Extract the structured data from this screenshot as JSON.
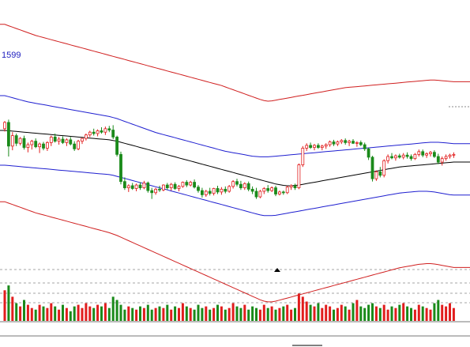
{
  "chart_data": {
    "type": "candlestick",
    "price_label": "1599",
    "colors": {
      "up": "#e11d1d",
      "down": "#1a8a1a",
      "ma": "#000000",
      "inner_band": "#1f1fd0",
      "outer_band": "#d01f1f",
      "grid": "#888888",
      "price_label": "#2020c0"
    },
    "candles": [
      [
        1580,
        1602,
        1572,
        1598
      ],
      [
        1598,
        1606,
        1500,
        1530
      ],
      [
        1530,
        1570,
        1518,
        1560
      ],
      [
        1560,
        1566,
        1530,
        1538
      ],
      [
        1538,
        1556,
        1532,
        1552
      ],
      [
        1552,
        1560,
        1520,
        1526
      ],
      [
        1526,
        1540,
        1512,
        1534
      ],
      [
        1534,
        1548,
        1520,
        1544
      ],
      [
        1544,
        1552,
        1524,
        1528
      ],
      [
        1528,
        1540,
        1510,
        1536
      ],
      [
        1536,
        1542,
        1518,
        1524
      ],
      [
        1524,
        1544,
        1516,
        1540
      ],
      [
        1540,
        1560,
        1530,
        1556
      ],
      [
        1556,
        1566,
        1540,
        1544
      ],
      [
        1544,
        1556,
        1534,
        1550
      ],
      [
        1550,
        1558,
        1536,
        1540
      ],
      [
        1540,
        1552,
        1530,
        1548
      ],
      [
        1548,
        1556,
        1532,
        1536
      ],
      [
        1536,
        1544,
        1516,
        1522
      ],
      [
        1522,
        1548,
        1518,
        1544
      ],
      [
        1544,
        1554,
        1536,
        1552
      ],
      [
        1552,
        1566,
        1546,
        1562
      ],
      [
        1562,
        1574,
        1556,
        1570
      ],
      [
        1570,
        1580,
        1560,
        1566
      ],
      [
        1566,
        1578,
        1558,
        1574
      ],
      [
        1574,
        1584,
        1566,
        1570
      ],
      [
        1570,
        1586,
        1562,
        1580
      ],
      [
        1580,
        1588,
        1570,
        1576
      ],
      [
        1576,
        1590,
        1550,
        1556
      ],
      [
        1556,
        1560,
        1500,
        1506
      ],
      [
        1506,
        1514,
        1420,
        1428
      ],
      [
        1428,
        1440,
        1404,
        1410
      ],
      [
        1410,
        1420,
        1398,
        1416
      ],
      [
        1416,
        1424,
        1404,
        1408
      ],
      [
        1408,
        1422,
        1400,
        1418
      ],
      [
        1418,
        1426,
        1404,
        1410
      ],
      [
        1410,
        1430,
        1406,
        1424
      ],
      [
        1424,
        1428,
        1396,
        1402
      ],
      [
        1402,
        1410,
        1378,
        1396
      ],
      [
        1396,
        1410,
        1390,
        1406
      ],
      [
        1406,
        1416,
        1398,
        1404
      ],
      [
        1404,
        1420,
        1400,
        1418
      ],
      [
        1418,
        1424,
        1404,
        1410
      ],
      [
        1410,
        1424,
        1402,
        1420
      ],
      [
        1420,
        1426,
        1404,
        1408
      ],
      [
        1408,
        1418,
        1400,
        1414
      ],
      [
        1414,
        1428,
        1410,
        1426
      ],
      [
        1426,
        1432,
        1412,
        1418
      ],
      [
        1418,
        1430,
        1414,
        1426
      ],
      [
        1426,
        1434,
        1408,
        1412
      ],
      [
        1412,
        1418,
        1396,
        1402
      ],
      [
        1402,
        1410,
        1382,
        1390
      ],
      [
        1390,
        1404,
        1384,
        1400
      ],
      [
        1400,
        1410,
        1388,
        1394
      ],
      [
        1394,
        1410,
        1388,
        1408
      ],
      [
        1408,
        1416,
        1392,
        1398
      ],
      [
        1398,
        1412,
        1390,
        1406
      ],
      [
        1406,
        1414,
        1394,
        1400
      ],
      [
        1400,
        1418,
        1396,
        1414
      ],
      [
        1414,
        1432,
        1408,
        1428
      ],
      [
        1428,
        1436,
        1414,
        1420
      ],
      [
        1420,
        1430,
        1404,
        1410
      ],
      [
        1410,
        1426,
        1404,
        1422
      ],
      [
        1422,
        1428,
        1400,
        1406
      ],
      [
        1406,
        1414,
        1392,
        1400
      ],
      [
        1400,
        1410,
        1378,
        1384
      ],
      [
        1384,
        1404,
        1380,
        1400
      ],
      [
        1400,
        1412,
        1392,
        1408
      ],
      [
        1408,
        1418,
        1396,
        1402
      ],
      [
        1402,
        1414,
        1398,
        1410
      ],
      [
        1410,
        1416,
        1386,
        1392
      ],
      [
        1392,
        1402,
        1388,
        1398
      ],
      [
        1398,
        1402,
        1390,
        1396
      ],
      [
        1396,
        1416,
        1392,
        1412
      ],
      [
        1412,
        1420,
        1404,
        1416
      ],
      [
        1416,
        1422,
        1404,
        1410
      ],
      [
        1410,
        1480,
        1406,
        1476
      ],
      [
        1476,
        1530,
        1470,
        1524
      ],
      [
        1524,
        1538,
        1516,
        1532
      ],
      [
        1532,
        1540,
        1522,
        1526
      ],
      [
        1526,
        1536,
        1518,
        1532
      ],
      [
        1532,
        1538,
        1522,
        1526
      ],
      [
        1526,
        1534,
        1518,
        1530
      ],
      [
        1530,
        1538,
        1522,
        1534
      ],
      [
        1534,
        1546,
        1528,
        1542
      ],
      [
        1542,
        1548,
        1530,
        1536
      ],
      [
        1536,
        1546,
        1530,
        1542
      ],
      [
        1542,
        1550,
        1536,
        1546
      ],
      [
        1546,
        1552,
        1534,
        1540
      ],
      [
        1540,
        1548,
        1530,
        1544
      ],
      [
        1544,
        1550,
        1536,
        1538
      ],
      [
        1538,
        1544,
        1528,
        1540
      ],
      [
        1540,
        1546,
        1530,
        1534
      ],
      [
        1534,
        1540,
        1516,
        1522
      ],
      [
        1522,
        1526,
        1490,
        1498
      ],
      [
        1498,
        1502,
        1428,
        1436
      ],
      [
        1436,
        1460,
        1430,
        1456
      ],
      [
        1456,
        1470,
        1440,
        1446
      ],
      [
        1446,
        1492,
        1440,
        1488
      ],
      [
        1488,
        1506,
        1480,
        1500
      ],
      [
        1500,
        1510,
        1492,
        1496
      ],
      [
        1496,
        1506,
        1488,
        1502
      ],
      [
        1502,
        1508,
        1494,
        1498
      ],
      [
        1498,
        1510,
        1492,
        1504
      ],
      [
        1504,
        1512,
        1494,
        1500
      ],
      [
        1500,
        1506,
        1488,
        1494
      ],
      [
        1494,
        1510,
        1490,
        1506
      ],
      [
        1506,
        1520,
        1500,
        1514
      ],
      [
        1514,
        1520,
        1498,
        1504
      ],
      [
        1504,
        1512,
        1496,
        1508
      ],
      [
        1508,
        1516,
        1500,
        1512
      ],
      [
        1512,
        1518,
        1496,
        1500
      ],
      [
        1500,
        1508,
        1478,
        1484
      ],
      [
        1484,
        1500,
        1474,
        1494
      ],
      [
        1494,
        1506,
        1488,
        1500
      ],
      [
        1500,
        1508,
        1494,
        1504
      ],
      [
        1504,
        1512,
        1496,
        1506
      ]
    ],
    "ma": [
      1575,
      1574,
      1573,
      1572,
      1571,
      1570,
      1569,
      1568,
      1567,
      1566,
      1565,
      1564,
      1563,
      1562,
      1561,
      1560,
      1559,
      1558,
      1557,
      1556,
      1555,
      1554,
      1553,
      1552,
      1551,
      1550,
      1549,
      1548,
      1546,
      1544,
      1541,
      1538,
      1535,
      1532,
      1529,
      1526,
      1523,
      1520,
      1517,
      1514,
      1511,
      1508,
      1505,
      1502,
      1499,
      1496,
      1493,
      1490,
      1487,
      1484,
      1481,
      1478,
      1475,
      1472,
      1469,
      1466,
      1463,
      1460,
      1457,
      1454,
      1451,
      1448,
      1445,
      1442,
      1439,
      1436,
      1433,
      1430,
      1427,
      1424,
      1421,
      1419,
      1417,
      1416,
      1416,
      1417,
      1418,
      1420,
      1422,
      1424,
      1426,
      1428,
      1430,
      1432,
      1434,
      1436,
      1438,
      1440,
      1442,
      1444,
      1446,
      1448,
      1450,
      1452,
      1454,
      1456,
      1458,
      1460,
      1462,
      1464,
      1466,
      1468,
      1470,
      1471,
      1472,
      1473,
      1474,
      1475,
      1476,
      1477,
      1478,
      1479,
      1480,
      1481,
      1482,
      1483,
      1484
    ],
    "band_inner_upper": [
      1675,
      1672,
      1669,
      1666,
      1663,
      1660,
      1657,
      1655,
      1653,
      1651,
      1649,
      1647,
      1645,
      1643,
      1641,
      1639,
      1637,
      1635,
      1633,
      1631,
      1629,
      1627,
      1625,
      1623,
      1621,
      1619,
      1617,
      1615,
      1612,
      1609,
      1605,
      1601,
      1597,
      1593,
      1589,
      1585,
      1581,
      1577,
      1573,
      1569,
      1566,
      1563,
      1560,
      1557,
      1554,
      1551,
      1548,
      1545,
      1542,
      1539,
      1536,
      1533,
      1530,
      1527,
      1524,
      1521,
      1518,
      1515,
      1513,
      1511,
      1509,
      1507,
      1505,
      1503,
      1501,
      1500,
      1499,
      1499,
      1499,
      1500,
      1501,
      1502,
      1503,
      1504,
      1505,
      1506,
      1507,
      1508,
      1509,
      1510,
      1511,
      1512,
      1513,
      1514,
      1515,
      1516,
      1517,
      1518,
      1519,
      1520,
      1521,
      1522,
      1523,
      1524,
      1525,
      1526,
      1527,
      1528,
      1529,
      1530,
      1531,
      1532,
      1533,
      1534,
      1535,
      1536,
      1537,
      1538,
      1539,
      1540,
      1541,
      1541,
      1541,
      1540,
      1539,
      1538,
      1537
    ],
    "band_inner_lower": [
      1475,
      1474,
      1473,
      1472,
      1471,
      1470,
      1469,
      1468,
      1467,
      1466,
      1465,
      1464,
      1463,
      1462,
      1461,
      1460,
      1459,
      1458,
      1457,
      1456,
      1455,
      1454,
      1453,
      1452,
      1451,
      1450,
      1449,
      1448,
      1446,
      1443,
      1440,
      1437,
      1434,
      1431,
      1428,
      1425,
      1422,
      1419,
      1416,
      1413,
      1410,
      1407,
      1404,
      1401,
      1398,
      1395,
      1392,
      1389,
      1386,
      1383,
      1380,
      1377,
      1374,
      1371,
      1368,
      1365,
      1362,
      1359,
      1356,
      1353,
      1350,
      1347,
      1344,
      1341,
      1338,
      1335,
      1332,
      1330,
      1330,
      1330,
      1331,
      1333,
      1335,
      1337,
      1339,
      1341,
      1343,
      1345,
      1347,
      1349,
      1351,
      1353,
      1355,
      1357,
      1359,
      1361,
      1363,
      1365,
      1367,
      1369,
      1371,
      1373,
      1375,
      1377,
      1379,
      1381,
      1383,
      1385,
      1387,
      1389,
      1391,
      1393,
      1395,
      1396,
      1397,
      1398,
      1399,
      1400,
      1400,
      1400,
      1399,
      1398,
      1396,
      1394,
      1392,
      1390,
      1389
    ],
    "band_outer_upper": [
      1880,
      1876,
      1872,
      1868,
      1864,
      1860,
      1856,
      1852,
      1848,
      1845,
      1842,
      1839,
      1836,
      1833,
      1830,
      1827,
      1824,
      1821,
      1818,
      1815,
      1812,
      1809,
      1806,
      1803,
      1800,
      1797,
      1794,
      1791,
      1788,
      1785,
      1782,
      1779,
      1776,
      1773,
      1770,
      1767,
      1764,
      1761,
      1758,
      1755,
      1752,
      1749,
      1746,
      1743,
      1740,
      1737,
      1734,
      1731,
      1728,
      1725,
      1722,
      1719,
      1716,
      1713,
      1710,
      1707,
      1704,
      1700,
      1696,
      1692,
      1688,
      1684,
      1680,
      1676,
      1672,
      1668,
      1664,
      1661,
      1659,
      1660,
      1662,
      1664,
      1666,
      1668,
      1670,
      1672,
      1674,
      1676,
      1678,
      1680,
      1682,
      1684,
      1686,
      1688,
      1690,
      1692,
      1694,
      1696,
      1698,
      1699,
      1700,
      1701,
      1702,
      1703,
      1704,
      1705,
      1706,
      1707,
      1708,
      1709,
      1710,
      1711,
      1712,
      1713,
      1714,
      1715,
      1716,
      1717,
      1718,
      1719,
      1720,
      1720,
      1719,
      1718,
      1717,
      1716,
      1715
    ],
    "band_outer_lower": [
      1370,
      1366,
      1362,
      1358,
      1354,
      1350,
      1346,
      1342,
      1338,
      1335,
      1332,
      1329,
      1326,
      1323,
      1320,
      1317,
      1314,
      1311,
      1308,
      1305,
      1302,
      1299,
      1296,
      1293,
      1290,
      1287,
      1284,
      1281,
      1277,
      1273,
      1268,
      1263,
      1258,
      1253,
      1248,
      1243,
      1238,
      1233,
      1228,
      1223,
      1218,
      1213,
      1208,
      1203,
      1198,
      1193,
      1188,
      1183,
      1178,
      1173,
      1168,
      1163,
      1158,
      1153,
      1148,
      1143,
      1138,
      1133,
      1128,
      1123,
      1118,
      1113,
      1108,
      1103,
      1098,
      1093,
      1088,
      1084,
      1082,
      1082,
      1084,
      1087,
      1090,
      1093,
      1096,
      1099,
      1102,
      1105,
      1108,
      1111,
      1114,
      1117,
      1120,
      1123,
      1126,
      1129,
      1132,
      1135,
      1138,
      1141,
      1144,
      1147,
      1150,
      1153,
      1156,
      1159,
      1162,
      1165,
      1168,
      1171,
      1174,
      1177,
      1180,
      1182,
      1184,
      1186,
      1188,
      1190,
      1191,
      1192,
      1192,
      1191,
      1189,
      1187,
      1185,
      1183,
      1181
    ],
    "volume": [
      38,
      44,
      30,
      22,
      18,
      26,
      20,
      16,
      14,
      20,
      18,
      16,
      22,
      18,
      14,
      20,
      16,
      12,
      18,
      20,
      16,
      22,
      18,
      16,
      20,
      18,
      22,
      16,
      30,
      26,
      20,
      14,
      18,
      16,
      14,
      18,
      16,
      20,
      14,
      16,
      18,
      16,
      20,
      14,
      18,
      16,
      22,
      18,
      16,
      14,
      20,
      16,
      18,
      14,
      16,
      20,
      18,
      14,
      16,
      22,
      18,
      16,
      20,
      14,
      18,
      16,
      14,
      20,
      16,
      18,
      14,
      16,
      18,
      20,
      14,
      16,
      34,
      30,
      24,
      20,
      18,
      22,
      16,
      20,
      18,
      14,
      16,
      20,
      18,
      14,
      22,
      26,
      18,
      16,
      20,
      22,
      18,
      16,
      20,
      14,
      18,
      16,
      20,
      22,
      18,
      16,
      14,
      20,
      18,
      16,
      14,
      22,
      26,
      20,
      18,
      22,
      16
    ],
    "volume_max": 50,
    "y_range": [
      1200,
      1950
    ]
  }
}
